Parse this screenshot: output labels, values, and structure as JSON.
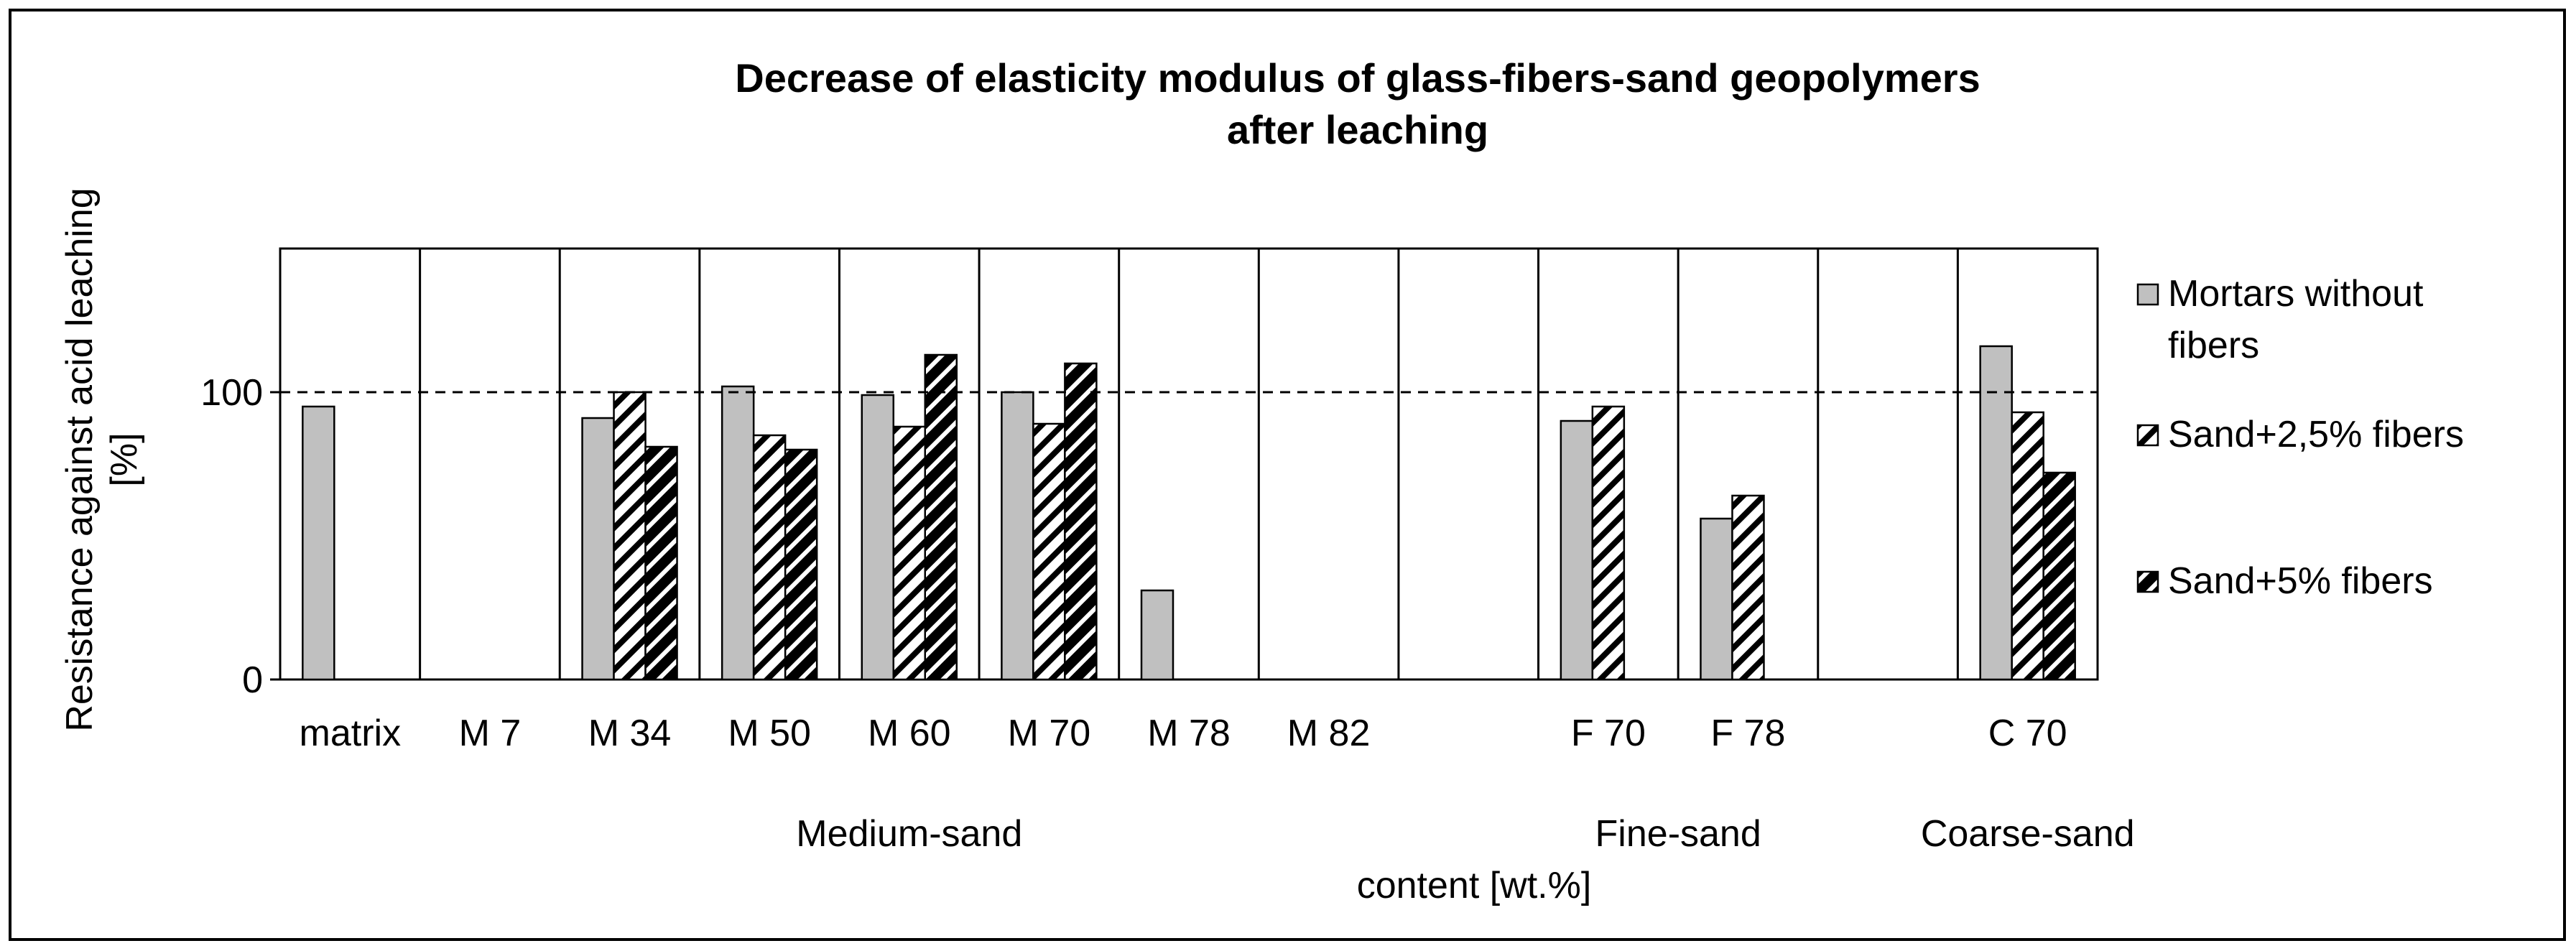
{
  "chart_data": {
    "type": "bar",
    "title": [
      "Decrease of elasticity modulus of glass-fibers-sand geopolymers",
      "after leaching"
    ],
    "xlabel": "content [wt.%]",
    "ylabel": [
      "Resistance against acid leaching",
      "[%]"
    ],
    "ylim": [
      0,
      150
    ],
    "yticks": [
      "0",
      "100"
    ],
    "reference_line": 100,
    "categories": [
      "matrix",
      "M 7",
      "M 34",
      "M 50",
      "M 60",
      "M 70",
      "M 78",
      "M 82",
      "",
      "F 70",
      "F 78",
      "",
      "C 70"
    ],
    "groups": [
      {
        "label": "Medium-sand",
        "span": [
          1,
          7
        ]
      },
      {
        "label": "Fine-sand",
        "span": [
          9,
          10
        ]
      },
      {
        "label": "Coarse-sand",
        "span": [
          12,
          12
        ]
      }
    ],
    "series": [
      {
        "name": "Mortars without fibers",
        "legend_lines": [
          "Mortars without",
          "fibers"
        ],
        "pattern": "solid-gray",
        "values": [
          95,
          null,
          91,
          102,
          99,
          100,
          31,
          null,
          null,
          90,
          56,
          null,
          116
        ]
      },
      {
        "name": "Sand+2,5% fibers",
        "legend_lines": [
          "Sand+2,5% fibers"
        ],
        "pattern": "sparse-hatch",
        "values": [
          null,
          null,
          100,
          85,
          88,
          89,
          null,
          null,
          null,
          95,
          64,
          null,
          93
        ]
      },
      {
        "name": "Sand+5%  fibers",
        "legend_lines": [
          "Sand+5%  fibers"
        ],
        "pattern": "dense-hatch",
        "values": [
          null,
          null,
          81,
          80,
          113,
          110,
          null,
          null,
          null,
          null,
          null,
          null,
          72
        ]
      }
    ],
    "legend_position": "right",
    "grid": false,
    "colors": {
      "solid": "#c0c0c0",
      "stroke": "#000000",
      "background": "#ffffff"
    }
  }
}
